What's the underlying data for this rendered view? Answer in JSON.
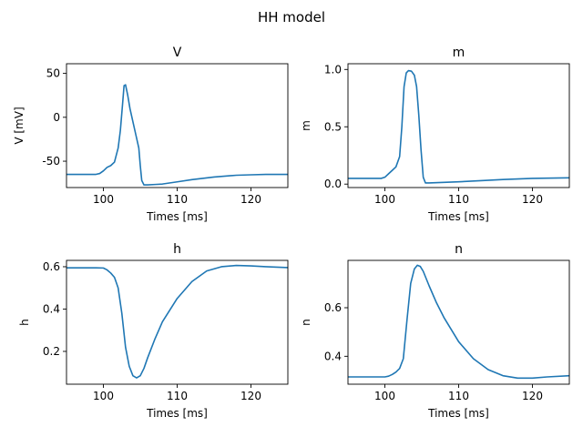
{
  "figure": {
    "suptitle": "HH model"
  },
  "chart_data": [
    {
      "type": "line",
      "title": "V",
      "xlabel": "Times [ms]",
      "ylabel": "V [mV]",
      "xlim": [
        95,
        125
      ],
      "ylim": [
        -80,
        61
      ],
      "xticks": [
        100,
        110,
        120
      ],
      "yticks": [
        -50,
        0,
        50
      ],
      "grid": false,
      "color": "#1f77b4",
      "series": [
        {
          "x": [
            95,
            99,
            99.5,
            100,
            100.5,
            101,
            101.5,
            102,
            102.3,
            102.6,
            102.8,
            103.0,
            103.3,
            103.6,
            104.0,
            104.4,
            104.8,
            105.0,
            105.2,
            105.5,
            106,
            107,
            108,
            110,
            112,
            115,
            118,
            120,
            122,
            125
          ],
          "y": [
            -65,
            -65,
            -64,
            -61,
            -57,
            -55,
            -51,
            -35,
            -15,
            15,
            36,
            37,
            25,
            10,
            -5,
            -20,
            -35,
            -55,
            -72,
            -77,
            -77,
            -76.5,
            -76,
            -73.5,
            -71,
            -68,
            -66,
            -65.5,
            -65,
            -65
          ]
        }
      ]
    },
    {
      "type": "line",
      "title": "m",
      "xlabel": "Times [ms]",
      "ylabel": "m",
      "xlim": [
        95,
        125
      ],
      "ylim": [
        -0.03,
        1.05
      ],
      "xticks": [
        100,
        110,
        120
      ],
      "yticks": [
        0.0,
        0.5,
        1.0
      ],
      "grid": false,
      "color": "#1f77b4",
      "series": [
        {
          "x": [
            95,
            99.5,
            100,
            100.5,
            101,
            101.5,
            102,
            102.3,
            102.6,
            102.9,
            103.2,
            103.6,
            104.0,
            104.3,
            104.6,
            104.9,
            105.2,
            105.5,
            106,
            108,
            110,
            113,
            116,
            120,
            125
          ],
          "y": [
            0.05,
            0.05,
            0.06,
            0.09,
            0.12,
            0.15,
            0.24,
            0.5,
            0.85,
            0.97,
            0.99,
            0.985,
            0.95,
            0.85,
            0.6,
            0.3,
            0.06,
            0.01,
            0.01,
            0.015,
            0.02,
            0.03,
            0.04,
            0.05,
            0.055
          ]
        }
      ]
    },
    {
      "type": "line",
      "title": "h",
      "xlabel": "Times [ms]",
      "ylabel": "h",
      "xlim": [
        95,
        125
      ],
      "ylim": [
        0.045,
        0.63
      ],
      "xticks": [
        100,
        110,
        120
      ],
      "yticks": [
        0.2,
        0.4,
        0.6
      ],
      "grid": false,
      "color": "#1f77b4",
      "series": [
        {
          "x": [
            95,
            99,
            100,
            100.5,
            101,
            101.5,
            102,
            102.5,
            103,
            103.5,
            104,
            104.5,
            105,
            105.5,
            106,
            107,
            108,
            110,
            112,
            114,
            116,
            118,
            120,
            122,
            125
          ],
          "y": [
            0.595,
            0.595,
            0.594,
            0.585,
            0.57,
            0.55,
            0.5,
            0.38,
            0.22,
            0.13,
            0.085,
            0.075,
            0.085,
            0.12,
            0.17,
            0.26,
            0.34,
            0.45,
            0.53,
            0.58,
            0.6,
            0.606,
            0.604,
            0.6,
            0.596
          ]
        }
      ]
    },
    {
      "type": "line",
      "title": "n",
      "xlabel": "Times [ms]",
      "ylabel": "n",
      "xlim": [
        95,
        125
      ],
      "ylim": [
        0.285,
        0.795
      ],
      "xticks": [
        100,
        110,
        120
      ],
      "yticks": [
        0.4,
        0.6
      ],
      "grid": false,
      "color": "#1f77b4",
      "series": [
        {
          "x": [
            95,
            100,
            100.5,
            101,
            101.5,
            102,
            102.5,
            103,
            103.5,
            104,
            104.4,
            104.8,
            105.2,
            106,
            107,
            108,
            110,
            112,
            114,
            116,
            118,
            120,
            122,
            125
          ],
          "y": [
            0.315,
            0.315,
            0.318,
            0.325,
            0.335,
            0.35,
            0.39,
            0.55,
            0.7,
            0.76,
            0.775,
            0.77,
            0.75,
            0.69,
            0.62,
            0.56,
            0.46,
            0.39,
            0.345,
            0.32,
            0.31,
            0.31,
            0.315,
            0.32
          ]
        }
      ]
    }
  ]
}
